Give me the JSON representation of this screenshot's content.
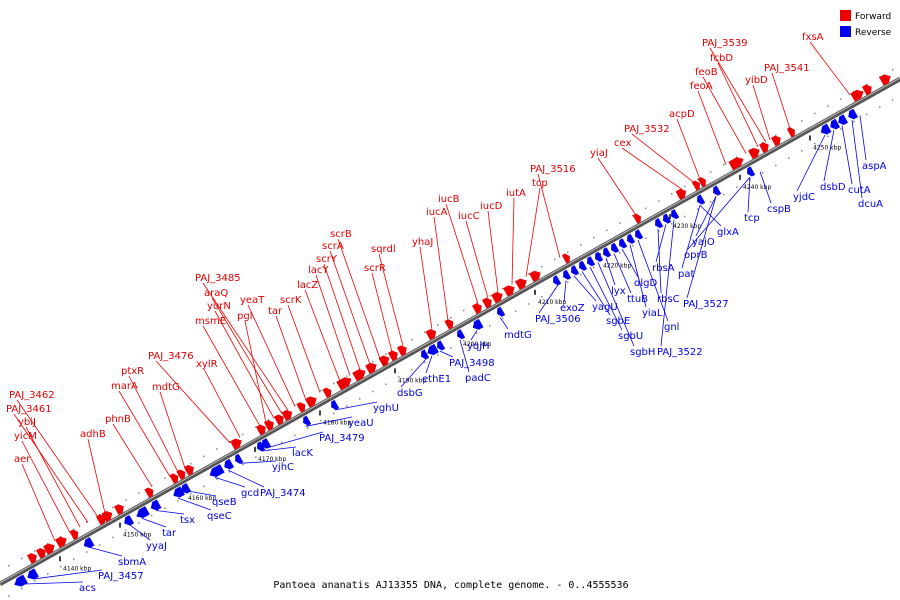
{
  "caption": "Pantoea ananatis AJ13355 DNA, complete genome. - 0..4555536",
  "colors": {
    "forward": "#ee0000",
    "reverse": "#0000ee"
  },
  "legend": [
    {
      "label": "Forward",
      "color": "#ee0000"
    },
    {
      "label": "Reverse",
      "color": "#0000ee"
    }
  ],
  "ticks": [
    "4140 kbp",
    "4150 kbp",
    "4160 kbp",
    "4170 kbp",
    "4180 kbp",
    "4190 kbp",
    "4200 kbp",
    "4210 kbp",
    "4220 kbp",
    "4230 kbp",
    "4240 kbp",
    "4250 kbp"
  ],
  "forward_genes": [
    "aer",
    "yicM",
    "ybiJ",
    "PAJ_3461",
    "PAJ_3462",
    "adhB",
    "phnB",
    "marA",
    "mdtG",
    "ptxR",
    "PAJ_3476",
    "xylR",
    "msmE",
    "pgl",
    "yurN",
    "araQ",
    "PAJ_3485",
    "yeaT",
    "tar",
    "scrK",
    "lacZ",
    "lacY",
    "scrY",
    "scrA",
    "scrB",
    "scrR",
    "sqrdl",
    "yhaJ",
    "iucA",
    "iucB",
    "iucC",
    "iucD",
    "iutA",
    "tcp",
    "PAJ_3516",
    "yiaJ",
    "cex",
    "PAJ_3532",
    "acpD",
    "feoA",
    "feoB",
    "fcbD",
    "PAJ_3539",
    "yibD",
    "PAJ_3541",
    "fxsA"
  ],
  "reverse_genes": [
    "acs",
    "PAJ_3457",
    "sbmA",
    "yyaJ",
    "tar",
    "tsx",
    "qseC",
    "qseB",
    "gcd",
    "PAJ_3474",
    "yjhC",
    "lacK",
    "PAJ_3479",
    "yeaU",
    "yghU",
    "dsbG",
    "ethE1",
    "PAJ_3498",
    "padC",
    "yqjH",
    "mdtG",
    "PAJ_3506",
    "exoZ",
    "yagU",
    "sgbE",
    "sgbU",
    "sgbH",
    "lyx",
    "ttuB",
    "dlgD",
    "yiaL",
    "gnl",
    "rbsC",
    "rbsA",
    "PAJ_3522",
    "pat",
    "PAJ_3527",
    "oprB",
    "yajO",
    "glxA",
    "tcp",
    "cspB",
    "yjdC",
    "dsbD",
    "cutA",
    "dcuA",
    "aspA"
  ]
}
